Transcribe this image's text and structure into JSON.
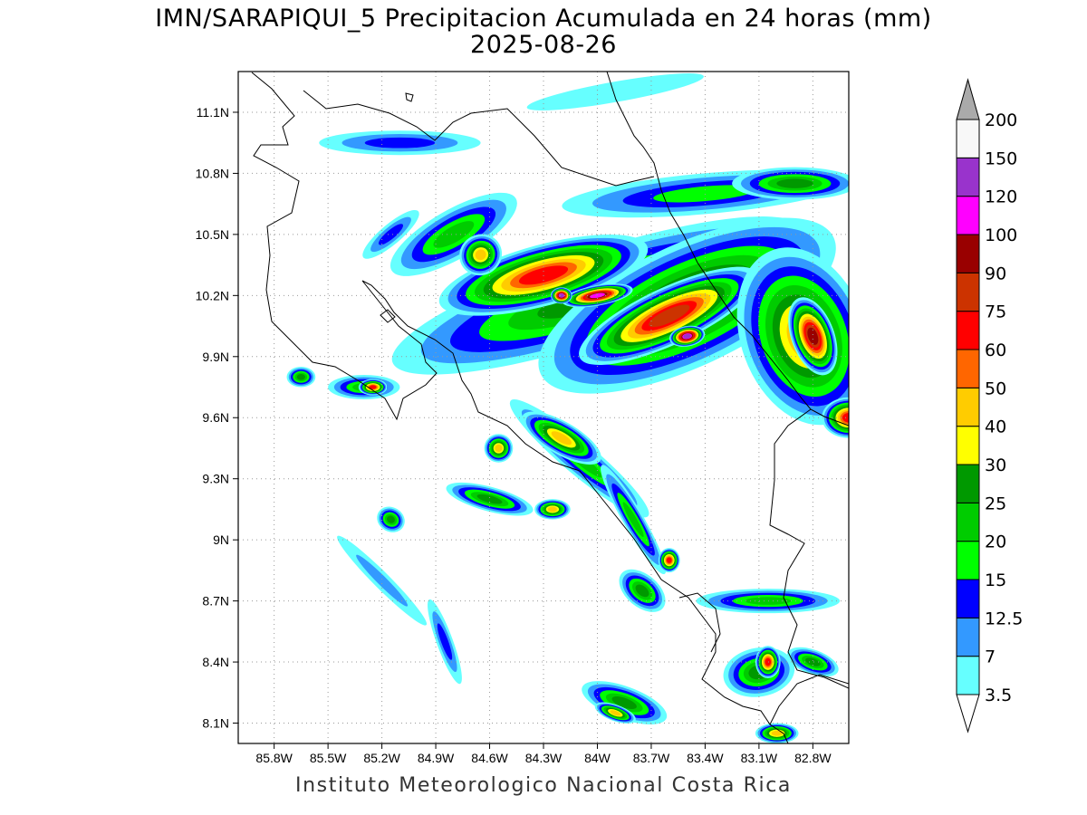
{
  "title": "IMN/SARAPIQUI_5 Precipitacion Acumulada en 24 horas (mm)",
  "date": "2025-08-26",
  "footer": "Instituto Meteorologico Nacional Costa Rica",
  "map": {
    "lon_range": [
      -86.0,
      -82.6
    ],
    "lat_range": [
      8.0,
      11.3
    ],
    "lon_ticks": [
      "85.8W",
      "85.5W",
      "85.2W",
      "84.9W",
      "84.6W",
      "84.3W",
      "84W",
      "83.7W",
      "83.4W",
      "83.1W",
      "82.8W"
    ],
    "lon_tick_values": [
      -85.8,
      -85.5,
      -85.2,
      -84.9,
      -84.6,
      -84.3,
      -84.0,
      -83.7,
      -83.4,
      -83.1,
      -82.8
    ],
    "lat_ticks": [
      "8.1N",
      "8.4N",
      "8.7N",
      "9N",
      "9.3N",
      "9.6N",
      "9.9N",
      "10.2N",
      "10.5N",
      "10.8N",
      "11.1N"
    ],
    "lat_tick_values": [
      8.1,
      8.4,
      8.7,
      9.0,
      9.3,
      9.6,
      9.9,
      10.2,
      10.5,
      10.8,
      11.1
    ],
    "grid": "dotted"
  },
  "legend": {
    "levels": [
      "3.5",
      "7",
      "12.5",
      "15",
      "20",
      "25",
      "30",
      "40",
      "50",
      "60",
      "75",
      "90",
      "100",
      "120",
      "150",
      "200"
    ],
    "colors": [
      "#66ffff",
      "#3399ff",
      "#0000ff",
      "#00ff00",
      "#00cc00",
      "#009900",
      "#ffff00",
      "#ffcc00",
      "#ff6600",
      "#ff0000",
      "#cc3300",
      "#990000",
      "#ff00ff",
      "#9933cc",
      "#f8f8f8",
      "#aaaaaa"
    ]
  },
  "precip_cells": [
    {
      "lon": -84.0,
      "lat": 10.2,
      "rx": 1.2,
      "ry": 0.22,
      "rot": 18,
      "mm": 25
    },
    {
      "lon": -83.5,
      "lat": 10.15,
      "rx": 0.9,
      "ry": 0.3,
      "rot": 25,
      "mm": 40
    },
    {
      "lon": -84.3,
      "lat": 10.3,
      "rx": 0.6,
      "ry": 0.15,
      "rot": 15,
      "mm": 60
    },
    {
      "lon": -83.6,
      "lat": 10.1,
      "rx": 0.55,
      "ry": 0.14,
      "rot": 25,
      "mm": 75
    },
    {
      "lon": -84.0,
      "lat": 10.2,
      "rx": 0.2,
      "ry": 0.05,
      "rot": 10,
      "mm": 100
    },
    {
      "lon": -83.5,
      "lat": 10.0,
      "rx": 0.1,
      "ry": 0.05,
      "rot": 10,
      "mm": 120
    },
    {
      "lon": -84.2,
      "lat": 10.2,
      "rx": 0.06,
      "ry": 0.04,
      "rot": 0,
      "mm": 120
    },
    {
      "lon": -82.85,
      "lat": 10.0,
      "rx": 0.35,
      "ry": 0.45,
      "rot": 20,
      "mm": 40
    },
    {
      "lon": -82.8,
      "lat": 10.0,
      "rx": 0.12,
      "ry": 0.2,
      "rot": 20,
      "mm": 90
    },
    {
      "lon": -84.8,
      "lat": 10.5,
      "rx": 0.4,
      "ry": 0.12,
      "rot": 30,
      "mm": 20
    },
    {
      "lon": -84.65,
      "lat": 10.4,
      "rx": 0.12,
      "ry": 0.1,
      "rot": 30,
      "mm": 40
    },
    {
      "lon": -83.4,
      "lat": 10.7,
      "rx": 0.8,
      "ry": 0.1,
      "rot": 5,
      "mm": 15
    },
    {
      "lon": -82.9,
      "lat": 10.75,
      "rx": 0.35,
      "ry": 0.08,
      "rot": 0,
      "mm": 25
    },
    {
      "lon": -84.1,
      "lat": 9.4,
      "rx": 0.5,
      "ry": 0.08,
      "rot": -40,
      "mm": 20
    },
    {
      "lon": -84.2,
      "lat": 9.5,
      "rx": 0.25,
      "ry": 0.08,
      "rot": -30,
      "mm": 40
    },
    {
      "lon": -83.8,
      "lat": 9.1,
      "rx": 0.35,
      "ry": 0.05,
      "rot": -60,
      "mm": 20
    },
    {
      "lon": -83.6,
      "lat": 8.9,
      "rx": 0.06,
      "ry": 0.06,
      "rot": 0,
      "mm": 60
    },
    {
      "lon": -84.55,
      "lat": 9.45,
      "rx": 0.08,
      "ry": 0.07,
      "rot": 0,
      "mm": 40
    },
    {
      "lon": -84.6,
      "lat": 9.2,
      "rx": 0.25,
      "ry": 0.06,
      "rot": -15,
      "mm": 25
    },
    {
      "lon": -84.25,
      "lat": 9.15,
      "rx": 0.1,
      "ry": 0.05,
      "rot": 0,
      "mm": 40
    },
    {
      "lon": -85.3,
      "lat": 9.75,
      "rx": 0.2,
      "ry": 0.06,
      "rot": 0,
      "mm": 20
    },
    {
      "lon": -85.25,
      "lat": 9.75,
      "rx": 0.08,
      "ry": 0.04,
      "rot": 0,
      "mm": 60
    },
    {
      "lon": -85.65,
      "lat": 9.8,
      "rx": 0.08,
      "ry": 0.05,
      "rot": 0,
      "mm": 25
    },
    {
      "lon": -85.15,
      "lat": 9.1,
      "rx": 0.08,
      "ry": 0.06,
      "rot": -30,
      "mm": 25
    },
    {
      "lon": -85.2,
      "lat": 8.8,
      "rx": 0.35,
      "ry": 0.04,
      "rot": -45,
      "mm": 7
    },
    {
      "lon": -83.85,
      "lat": 8.2,
      "rx": 0.25,
      "ry": 0.08,
      "rot": -20,
      "mm": 25
    },
    {
      "lon": -83.9,
      "lat": 8.15,
      "rx": 0.12,
      "ry": 0.04,
      "rot": -20,
      "mm": 40
    },
    {
      "lon": -83.1,
      "lat": 8.35,
      "rx": 0.2,
      "ry": 0.12,
      "rot": 10,
      "mm": 25
    },
    {
      "lon": -83.05,
      "lat": 8.4,
      "rx": 0.07,
      "ry": 0.08,
      "rot": 0,
      "mm": 60
    },
    {
      "lon": -83.0,
      "lat": 8.05,
      "rx": 0.12,
      "ry": 0.05,
      "rot": 0,
      "mm": 40
    },
    {
      "lon": -82.8,
      "lat": 8.4,
      "rx": 0.15,
      "ry": 0.06,
      "rot": -20,
      "mm": 25
    },
    {
      "lon": -83.05,
      "lat": 8.7,
      "rx": 0.4,
      "ry": 0.06,
      "rot": 0,
      "mm": 20
    },
    {
      "lon": -83.75,
      "lat": 8.75,
      "rx": 0.15,
      "ry": 0.08,
      "rot": -40,
      "mm": 25
    },
    {
      "lon": -84.85,
      "lat": 8.5,
      "rx": 0.25,
      "ry": 0.04,
      "rot": -70,
      "mm": 12.5
    },
    {
      "lon": -85.1,
      "lat": 10.95,
      "rx": 0.45,
      "ry": 0.06,
      "rot": 0,
      "mm": 12.5
    },
    {
      "lon": -82.6,
      "lat": 9.6,
      "rx": 0.15,
      "ry": 0.1,
      "rot": 0,
      "mm": 60
    },
    {
      "lon": -85.15,
      "lat": 10.5,
      "rx": 0.2,
      "ry": 0.05,
      "rot": 40,
      "mm": 12.5
    },
    {
      "lon": -83.9,
      "lat": 11.2,
      "rx": 0.5,
      "ry": 0.05,
      "rot": 10,
      "mm": 3.5
    }
  ]
}
